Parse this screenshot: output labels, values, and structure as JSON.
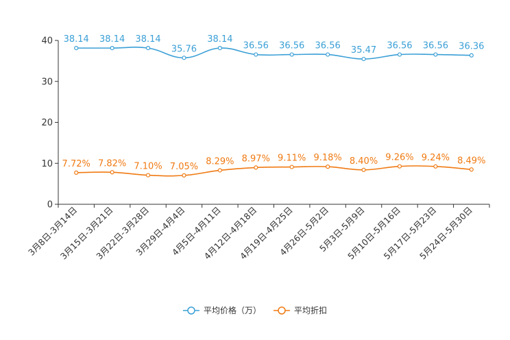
{
  "chart_data": {
    "type": "line",
    "categories": [
      "3月8日-3月14日",
      "3月15日-3月21日",
      "3月22日-3月28日",
      "3月29日-4月4日",
      "4月5日-4月11日",
      "4月12日-4月18日",
      "4月19日-4月25日",
      "4月26日-5月2日",
      "5月3日-5月9日",
      "5月10日-5月16日",
      "5月17日-5月23日",
      "5月24日-5月30日"
    ],
    "ylim": [
      0,
      40
    ],
    "yticks": [
      0,
      10,
      20,
      30,
      40
    ],
    "series": [
      {
        "name": "平均价格（万）",
        "color": "#3a9fd6",
        "values": [
          38.14,
          38.14,
          38.14,
          35.76,
          38.14,
          36.56,
          36.56,
          36.56,
          35.47,
          36.56,
          36.56,
          36.36
        ],
        "labels": [
          "38.14",
          "38.14",
          "38.14",
          "35.76",
          "38.14",
          "36.56",
          "36.56",
          "36.56",
          "35.47",
          "36.56",
          "36.56",
          "36.36"
        ]
      },
      {
        "name": "平均折扣",
        "color": "#f07a12",
        "values": [
          7.72,
          7.82,
          7.1,
          7.05,
          8.29,
          8.97,
          9.11,
          9.18,
          8.4,
          9.26,
          9.24,
          8.49
        ],
        "labels": [
          "7.72%",
          "7.82%",
          "7.10%",
          "7.05%",
          "8.29%",
          "8.97%",
          "9.11%",
          "9.18%",
          "8.40%",
          "9.26%",
          "9.24%",
          "8.49%"
        ]
      }
    ]
  }
}
